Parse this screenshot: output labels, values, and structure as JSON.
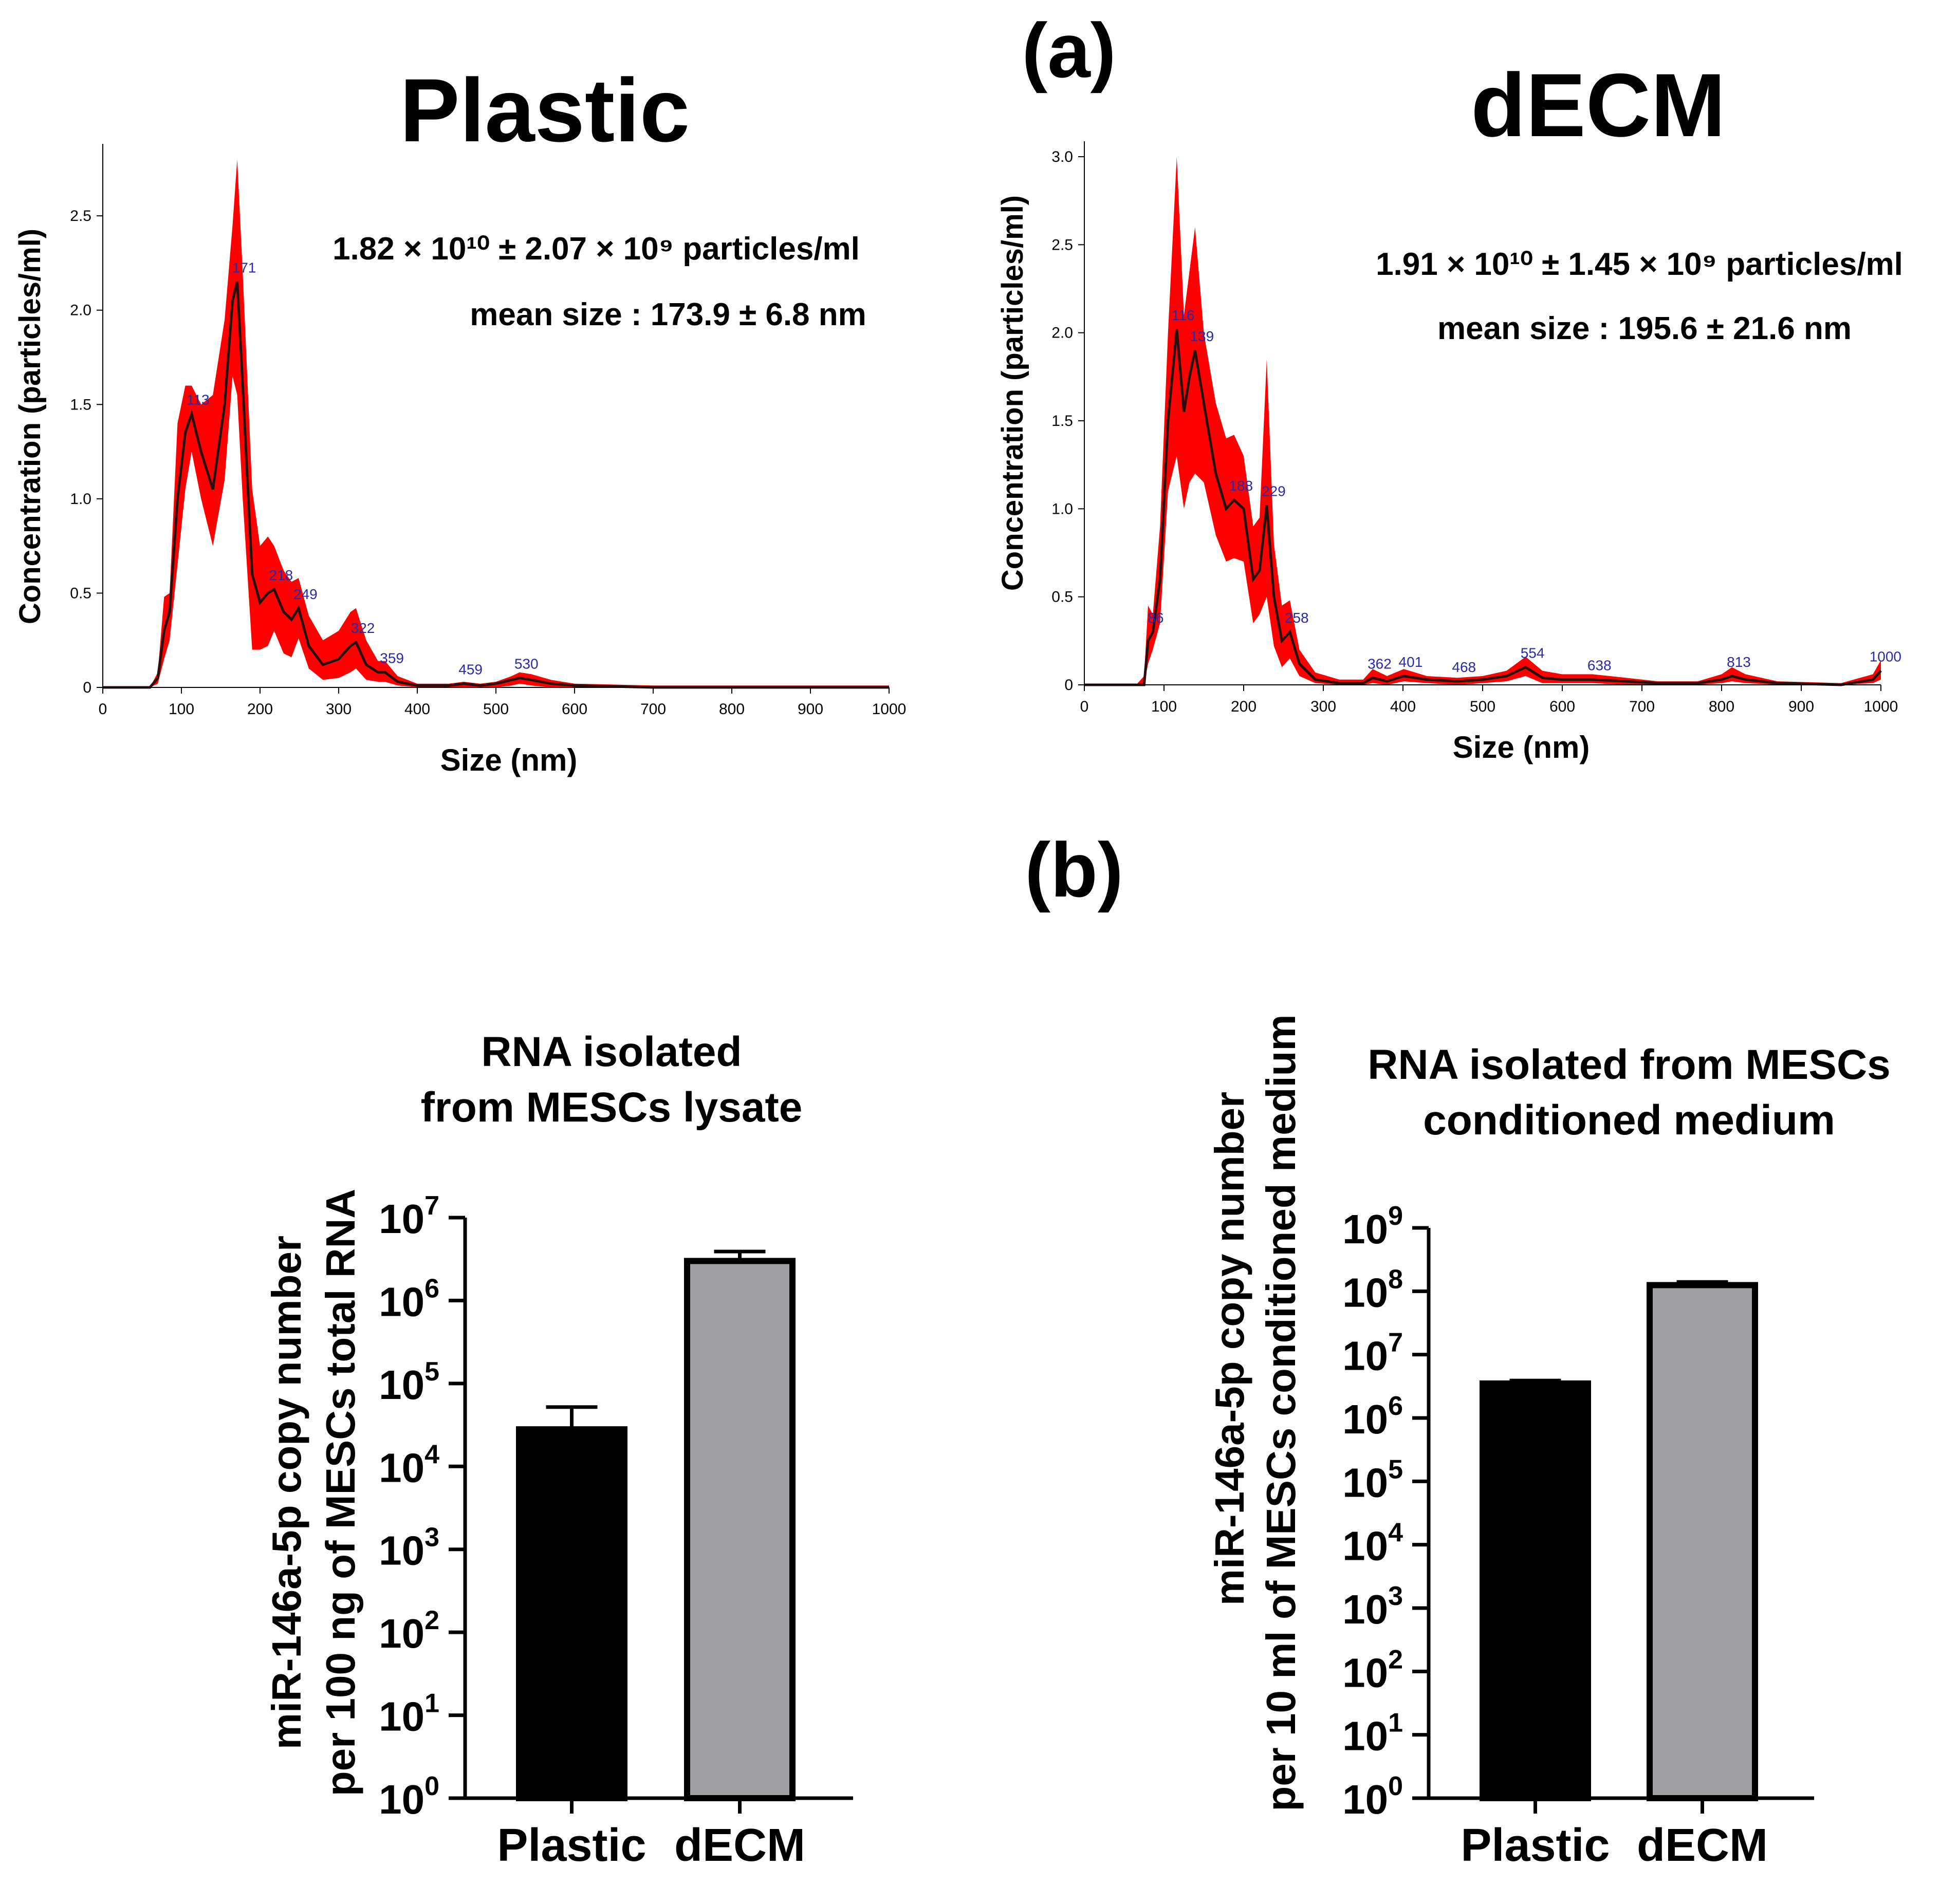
{
  "panel_labels": {
    "a": "(a)",
    "b": "(b)"
  },
  "colors": {
    "band": "#ff0000",
    "mean": "#2a0d0d",
    "peak_label": "#2a2aa8",
    "plastic_bar": "#000000",
    "decm_bar": "#a0a0a4"
  },
  "chart_data": [
    {
      "id": "nta_plastic",
      "type": "area",
      "title": "Plastic",
      "xlabel": "Size (nm)",
      "ylabel": "Concentration (particles/ml)",
      "xlim": [
        0,
        1000
      ],
      "ylim": [
        0,
        2.8
      ],
      "xticks": [
        "0",
        "100",
        "200",
        "300",
        "400",
        "500",
        "600",
        "700",
        "800",
        "900",
        "1000"
      ],
      "yticks": [
        {
          "v": 0,
          "label": "0"
        },
        {
          "v": 0.5,
          "label": "0.5"
        },
        {
          "v": 1.0,
          "label": "1.0"
        },
        {
          "v": 1.5,
          "label": "1.5"
        },
        {
          "v": 2.0,
          "label": "2.0"
        },
        {
          "v": 2.5,
          "label": "2.5"
        }
      ],
      "annotation_conc": "1.82 × 10¹⁰ ± 2.07 × 10⁹ particles/ml",
      "annotation_size": "mean size : 173.9 ± 6.8 nm",
      "peaks": [
        {
          "x": 113,
          "y": 1.45,
          "label": "113"
        },
        {
          "x": 171,
          "y": 2.15,
          "label": "171"
        },
        {
          "x": 218,
          "y": 0.52,
          "label": "218"
        },
        {
          "x": 249,
          "y": 0.42,
          "label": "249"
        },
        {
          "x": 322,
          "y": 0.24,
          "label": "322"
        },
        {
          "x": 359,
          "y": 0.08,
          "label": "359"
        },
        {
          "x": 459,
          "y": 0.02,
          "label": "459"
        },
        {
          "x": 530,
          "y": 0.05,
          "label": "530"
        }
      ],
      "series": [
        {
          "name": "mean",
          "x": [
            0,
            60,
            70,
            78,
            85,
            95,
            105,
            113,
            125,
            140,
            155,
            165,
            171,
            178,
            190,
            200,
            210,
            218,
            230,
            240,
            249,
            262,
            280,
            300,
            315,
            322,
            335,
            350,
            359,
            375,
            400,
            440,
            459,
            480,
            500,
            520,
            530,
            545,
            570,
            600,
            700,
            800,
            900,
            1000
          ],
          "y": [
            0,
            0,
            0.05,
            0.3,
            0.4,
            1.0,
            1.35,
            1.45,
            1.25,
            1.05,
            1.5,
            2.05,
            2.15,
            1.6,
            0.6,
            0.45,
            0.5,
            0.52,
            0.4,
            0.36,
            0.42,
            0.22,
            0.12,
            0.15,
            0.22,
            0.24,
            0.12,
            0.08,
            0.08,
            0.03,
            0.01,
            0.01,
            0.02,
            0.01,
            0.02,
            0.04,
            0.05,
            0.04,
            0.02,
            0.01,
            0,
            0,
            0,
            0
          ]
        },
        {
          "name": "upper",
          "x": [
            0,
            60,
            70,
            78,
            85,
            95,
            105,
            113,
            125,
            140,
            155,
            165,
            171,
            178,
            190,
            200,
            210,
            218,
            230,
            240,
            249,
            262,
            280,
            300,
            315,
            322,
            335,
            350,
            359,
            375,
            400,
            440,
            459,
            480,
            500,
            520,
            530,
            545,
            570,
            600,
            700,
            800,
            900,
            1000
          ],
          "y": [
            0,
            0,
            0.08,
            0.48,
            0.5,
            1.4,
            1.6,
            1.6,
            1.5,
            1.55,
            1.95,
            2.45,
            2.8,
            2.2,
            1.05,
            0.75,
            0.8,
            0.75,
            0.62,
            0.56,
            0.58,
            0.38,
            0.25,
            0.3,
            0.4,
            0.42,
            0.25,
            0.14,
            0.14,
            0.06,
            0.02,
            0.02,
            0.03,
            0.02,
            0.03,
            0.06,
            0.08,
            0.07,
            0.04,
            0.02,
            0.01,
            0.01,
            0.01,
            0.01
          ]
        },
        {
          "name": "lower",
          "x": [
            0,
            60,
            70,
            78,
            85,
            95,
            105,
            113,
            125,
            140,
            155,
            165,
            171,
            178,
            190,
            200,
            210,
            218,
            230,
            240,
            249,
            262,
            280,
            300,
            315,
            322,
            335,
            350,
            359,
            375,
            400,
            440,
            459,
            480,
            500,
            520,
            530,
            545,
            570,
            600,
            700,
            800,
            900,
            1000
          ],
          "y": [
            0,
            0,
            0.02,
            0.15,
            0.25,
            0.65,
            1.05,
            1.25,
            1.0,
            0.75,
            1.1,
            1.65,
            1.55,
            1.0,
            0.2,
            0.2,
            0.22,
            0.3,
            0.18,
            0.16,
            0.26,
            0.1,
            0.04,
            0.05,
            0.08,
            0.1,
            0.04,
            0.03,
            0.03,
            0.01,
            0,
            0,
            0,
            0,
            0,
            0.01,
            0.02,
            0.01,
            0,
            0,
            0,
            0,
            0,
            0
          ]
        }
      ]
    },
    {
      "id": "nta_decm",
      "type": "area",
      "title": "dECM",
      "xlabel": "Size (nm)",
      "ylabel": "Concentration (particles/ml)",
      "xlim": [
        0,
        1000
      ],
      "ylim": [
        0,
        3.0
      ],
      "xticks": [
        "0",
        "100",
        "200",
        "300",
        "400",
        "500",
        "600",
        "700",
        "800",
        "900",
        "1000"
      ],
      "yticks": [
        {
          "v": 0,
          "label": "0"
        },
        {
          "v": 0.5,
          "label": "0.5"
        },
        {
          "v": 1.0,
          "label": "1.0"
        },
        {
          "v": 1.5,
          "label": "1.5"
        },
        {
          "v": 2.0,
          "label": "2.0"
        },
        {
          "v": 2.5,
          "label": "2.5"
        },
        {
          "v": 3.0,
          "label": "3.0"
        }
      ],
      "annotation_conc": "1.91 × 10¹⁰ ± 1.45 × 10⁹ particles/ml",
      "annotation_size": "mean size : 195.6 ± 21.6 nm",
      "peaks": [
        {
          "x": 86,
          "y": 0.3,
          "label": "86"
        },
        {
          "x": 116,
          "y": 2.02,
          "label": "116"
        },
        {
          "x": 139,
          "y": 1.9,
          "label": "139"
        },
        {
          "x": 188,
          "y": 1.05,
          "label": "188"
        },
        {
          "x": 229,
          "y": 1.02,
          "label": "229"
        },
        {
          "x": 258,
          "y": 0.3,
          "label": "258"
        },
        {
          "x": 362,
          "y": 0.04,
          "label": "362"
        },
        {
          "x": 401,
          "y": 0.05,
          "label": "401"
        },
        {
          "x": 468,
          "y": 0.02,
          "label": "468"
        },
        {
          "x": 554,
          "y": 0.1,
          "label": "554"
        },
        {
          "x": 638,
          "y": 0.03,
          "label": "638"
        },
        {
          "x": 813,
          "y": 0.05,
          "label": "813"
        },
        {
          "x": 1000,
          "y": 0.08,
          "label": "1000"
        }
      ],
      "series": [
        {
          "name": "mean",
          "x": [
            0,
            65,
            75,
            80,
            86,
            95,
            105,
            116,
            125,
            132,
            139,
            150,
            165,
            178,
            188,
            200,
            212,
            220,
            229,
            238,
            248,
            258,
            270,
            290,
            320,
            350,
            362,
            380,
            401,
            430,
            468,
            500,
            530,
            554,
            575,
            600,
            638,
            680,
            720,
            770,
            800,
            813,
            830,
            870,
            950,
            990,
            1000
          ],
          "y": [
            0,
            0,
            0,
            0.25,
            0.3,
            0.6,
            1.5,
            2.02,
            1.55,
            1.75,
            1.9,
            1.6,
            1.2,
            1.0,
            1.05,
            1.0,
            0.6,
            0.65,
            1.02,
            0.5,
            0.25,
            0.3,
            0.12,
            0.03,
            0.01,
            0.01,
            0.04,
            0.02,
            0.05,
            0.03,
            0.02,
            0.03,
            0.05,
            0.1,
            0.04,
            0.03,
            0.03,
            0.02,
            0.01,
            0.01,
            0.03,
            0.05,
            0.03,
            0.01,
            0,
            0.03,
            0.08
          ]
        },
        {
          "name": "upper",
          "x": [
            0,
            65,
            75,
            80,
            86,
            95,
            105,
            116,
            125,
            132,
            139,
            150,
            165,
            178,
            188,
            200,
            212,
            220,
            229,
            238,
            248,
            258,
            270,
            290,
            320,
            350,
            362,
            380,
            401,
            430,
            468,
            500,
            530,
            554,
            575,
            600,
            638,
            680,
            720,
            770,
            800,
            813,
            830,
            870,
            950,
            990,
            1000
          ],
          "y": [
            0,
            0,
            0.05,
            0.45,
            0.4,
            0.9,
            2.0,
            3.0,
            2.1,
            2.35,
            2.6,
            2.0,
            1.6,
            1.4,
            1.42,
            1.3,
            0.9,
            0.95,
            1.85,
            0.8,
            0.45,
            0.48,
            0.2,
            0.07,
            0.03,
            0.03,
            0.09,
            0.05,
            0.09,
            0.05,
            0.04,
            0.05,
            0.08,
            0.16,
            0.08,
            0.06,
            0.06,
            0.04,
            0.02,
            0.02,
            0.06,
            0.1,
            0.06,
            0.02,
            0.01,
            0.06,
            0.14
          ]
        },
        {
          "name": "lower",
          "x": [
            0,
            65,
            75,
            80,
            86,
            95,
            105,
            116,
            125,
            132,
            139,
            150,
            165,
            178,
            188,
            200,
            212,
            220,
            229,
            238,
            248,
            258,
            270,
            290,
            320,
            350,
            362,
            380,
            401,
            430,
            468,
            500,
            530,
            554,
            575,
            600,
            638,
            680,
            720,
            770,
            800,
            813,
            830,
            870,
            950,
            990,
            1000
          ],
          "y": [
            0,
            0,
            0,
            0.12,
            0.2,
            0.35,
            1.1,
            1.3,
            1.0,
            1.15,
            1.2,
            1.15,
            0.85,
            0.7,
            0.72,
            0.7,
            0.35,
            0.4,
            0.5,
            0.22,
            0.1,
            0.15,
            0.05,
            0.01,
            0,
            0,
            0.01,
            0,
            0.02,
            0.01,
            0,
            0.01,
            0.02,
            0.05,
            0.01,
            0.01,
            0.01,
            0,
            0,
            0,
            0.01,
            0.02,
            0.01,
            0,
            0,
            0.01,
            0.03
          ]
        }
      ]
    },
    {
      "id": "bar_lysate",
      "type": "bar",
      "title_lines": [
        "RNA isolated",
        "from MESCs lysate"
      ],
      "ylabel_lines": [
        "miR-146a-5p copy number",
        "per 100 ng of MESCs total RNA"
      ],
      "scale": "log10",
      "ylim_exp": [
        0,
        7
      ],
      "ytick_exps": [
        0,
        1,
        2,
        3,
        4,
        5,
        6,
        7
      ],
      "categories": [
        "Plastic",
        "dECM"
      ],
      "values": [
        28000,
        3000000
      ],
      "errors_upper": [
        52000,
        3900000
      ]
    },
    {
      "id": "bar_conditioned",
      "type": "bar",
      "title_lines": [
        "RNA isolated from MESCs",
        "conditioned medium"
      ],
      "ylabel_lines": [
        "miR-146a-5p copy number",
        "per 10 ml of MESCs conditioned medium"
      ],
      "scale": "log10",
      "ylim_exp": [
        0,
        9
      ],
      "ytick_exps": [
        0,
        1,
        2,
        3,
        4,
        5,
        6,
        7,
        8,
        9
      ],
      "categories": [
        "Plastic",
        "dECM"
      ],
      "values": [
        3500000,
        125000000
      ],
      "errors_upper": [
        3900000,
        140000000
      ]
    }
  ]
}
